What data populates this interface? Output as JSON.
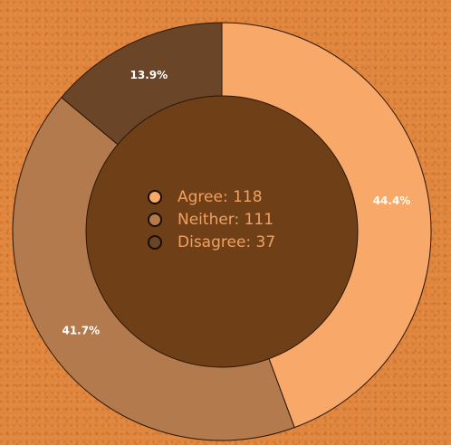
{
  "chart_data": {
    "type": "pie",
    "donut": true,
    "categories": [
      "Agree",
      "Neither",
      "Disagree"
    ],
    "values": [
      118,
      111,
      37
    ],
    "percent_labels": [
      "44.4%",
      "41.7%",
      "13.9%"
    ],
    "legend": [
      {
        "text": "Agree: 118",
        "color": "#f8a868"
      },
      {
        "text": "Neither: 111",
        "color": "#b37b4d"
      },
      {
        "text": "Disagree: 37",
        "color": "#6a4528"
      }
    ],
    "colors": [
      "#f8a868",
      "#b37b4d",
      "#6a4528"
    ],
    "center_color": "#6f3f18",
    "legend_placement": "center",
    "start_angle_deg": 0,
    "direction": "clockwise"
  }
}
